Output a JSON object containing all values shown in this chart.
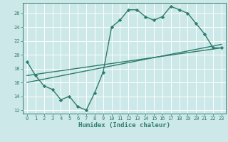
{
  "title": "",
  "xlabel": "Humidex (Indice chaleur)",
  "ylabel": "",
  "background_color": "#cce8e8",
  "grid_color": "#ffffff",
  "line_color": "#2e7d6e",
  "xlim": [
    -0.5,
    23.5
  ],
  "ylim": [
    11.5,
    27.5
  ],
  "xticks": [
    0,
    1,
    2,
    3,
    4,
    5,
    6,
    7,
    8,
    9,
    10,
    11,
    12,
    13,
    14,
    15,
    16,
    17,
    18,
    19,
    20,
    21,
    22,
    23
  ],
  "yticks": [
    12,
    14,
    16,
    18,
    20,
    22,
    24,
    26
  ],
  "line1_x": [
    0,
    1,
    2,
    3,
    4,
    5,
    6,
    7,
    8,
    9,
    10,
    11,
    12,
    13,
    14,
    15,
    16,
    17,
    18,
    19,
    20,
    21,
    22,
    23
  ],
  "line1_y": [
    19,
    17,
    15.5,
    15,
    13.5,
    14,
    12.5,
    12,
    14.5,
    17.5,
    24,
    25,
    26.5,
    26.5,
    25.5,
    25,
    25.5,
    27,
    26.5,
    26,
    24.5,
    23,
    21,
    21
  ],
  "line2_x": [
    0,
    23
  ],
  "line2_y": [
    17.0,
    21.0
  ],
  "line3_x": [
    0,
    23
  ],
  "line3_y": [
    16.0,
    21.5
  ],
  "marker": "D",
  "marker_size": 2.2,
  "linewidth": 1.0,
  "font_family": "monospace",
  "tick_fontsize": 5.0,
  "xlabel_fontsize": 6.5
}
